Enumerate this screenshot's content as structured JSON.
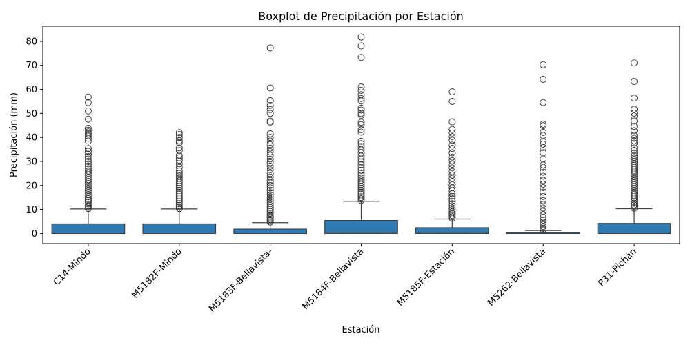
{
  "chart_data": {
    "type": "box",
    "title": "Boxplot de Precipitación por Estación",
    "xlabel": "Estación",
    "ylabel": "Precipitación (mm)",
    "ylim": [
      -4.2,
      86.3
    ],
    "yticks": [
      0,
      10,
      20,
      30,
      40,
      50,
      60,
      70,
      80
    ],
    "grid": false,
    "box_color": "#2f7ab3",
    "categories": [
      "C14-Mindo",
      "M5182F-Mindo",
      "M5183F-Bellavista-",
      "M5184F-Bellavista",
      "M5185F-Estación",
      "M5262-Bellavista",
      "P31-Pichán"
    ],
    "boxes": [
      {
        "whisker_low": 0,
        "q1": 0,
        "median": 0,
        "q3": 4.0,
        "whisker_high": 10.2,
        "fliers": [
          10.4,
          11,
          11.6,
          12.3,
          13,
          13.8,
          14.5,
          15.3,
          16.1,
          17,
          17.9,
          18.8,
          19.7,
          20.6,
          21.5,
          22.4,
          23.3,
          24.2,
          25.1,
          26,
          27,
          28,
          29,
          30,
          31,
          32,
          33,
          34.2,
          35.4,
          38.5,
          39.6,
          40.6,
          41.5,
          42.3,
          43.0,
          43.8,
          47.6,
          51.0,
          54.5,
          56.8
        ]
      },
      {
        "whisker_low": 0,
        "q1": 0,
        "median": 0,
        "q3": 4.0,
        "whisker_high": 10.2,
        "fliers": [
          10.4,
          11,
          11.7,
          12.4,
          13.2,
          14,
          14.8,
          15.6,
          16.4,
          17.2,
          18,
          18.8,
          19.6,
          20.4,
          21.2,
          22,
          23,
          24,
          25,
          26,
          27.5,
          29,
          30.5,
          31.5,
          32.5,
          34.5,
          35.6,
          37.8,
          38.6,
          40.0,
          41.2,
          42.0
        ]
      },
      {
        "whisker_low": 0,
        "q1": 0,
        "median": 0,
        "q3": 1.8,
        "whisker_high": 4.5,
        "fliers": [
          4.8,
          5.3,
          5.9,
          6.5,
          7.1,
          7.8,
          8.5,
          9.2,
          10,
          10.8,
          11.6,
          12.5,
          13.4,
          14.3,
          15.2,
          16.1,
          17,
          18,
          19,
          20,
          21,
          22,
          23.5,
          25,
          26.5,
          28,
          29.5,
          31,
          32.5,
          34,
          35.5,
          37,
          38.5,
          40,
          41.5,
          46.4,
          46.8,
          50.0,
          51.6,
          53.3,
          55.3,
          60.6,
          77.3
        ]
      },
      {
        "whisker_low": 0,
        "q1": 0,
        "median": 0.3,
        "q3": 5.4,
        "whisker_high": 13.4,
        "fliers": [
          13.8,
          14.4,
          15,
          15.7,
          16.4,
          17.2,
          18,
          18.8,
          19.6,
          20.4,
          21.3,
          22.2,
          23.2,
          24.2,
          25.2,
          26.3,
          27.4,
          28.6,
          29.8,
          31,
          32.2,
          33.5,
          34.8,
          36.2,
          37.4,
          38.4,
          42.2,
          43.2,
          45.3,
          46.3,
          49.2,
          50.0,
          51.4,
          52.2,
          55.2,
          56.2,
          57.8,
          59.6,
          61.0,
          73.3,
          78.1,
          81.8
        ]
      },
      {
        "whisker_low": 0,
        "q1": 0,
        "median": 0.3,
        "q3": 2.4,
        "whisker_high": 6.0,
        "fliers": [
          6.3,
          6.9,
          7.5,
          8.2,
          9,
          9.8,
          10.6,
          11.5,
          12.4,
          13.4,
          14.4,
          15.5,
          16.6,
          17.8,
          19,
          20.3,
          21.6,
          22.9,
          24.3,
          25.8,
          27.3,
          28.8,
          30.3,
          31.8,
          33.6,
          35.4,
          36.8,
          38.8,
          40.3,
          41.8,
          43.3,
          46.5,
          55.0,
          59.0
        ]
      },
      {
        "whisker_low": 0,
        "q1": 0,
        "median": 0,
        "q3": 0.5,
        "whisker_high": 1.2,
        "fliers": [
          1.6,
          2.2,
          2.9,
          3.7,
          4.6,
          5.6,
          6.7,
          7.9,
          9.2,
          10.6,
          12.1,
          13.7,
          15.4,
          17.2,
          19.1,
          20.5,
          22.1,
          23.8,
          25.5,
          27.5,
          28.5,
          31.0,
          33.6,
          35.8,
          37.2,
          38.3,
          40.8,
          42.1,
          44.9,
          45.5,
          54.5,
          64.2,
          70.3
        ]
      },
      {
        "whisker_low": 0,
        "q1": 0,
        "median": 0,
        "q3": 4.2,
        "whisker_high": 10.3,
        "fliers": [
          10.5,
          11.2,
          11.9,
          12.6,
          13.3,
          14,
          14.8,
          15.6,
          16.4,
          17.2,
          18,
          18.8,
          19.6,
          20.4,
          21.2,
          22,
          22.8,
          23.6,
          24.4,
          25.2,
          26,
          26.8,
          27.6,
          28.4,
          29.2,
          30,
          30.8,
          31.6,
          32.4,
          33.5,
          34.6,
          35.6,
          37.6,
          38.6,
          39.6,
          40.8,
          42.8,
          44.6,
          46.8,
          48.9,
          50.1,
          51.7,
          56.4,
          63.3,
          71.0
        ]
      }
    ]
  }
}
